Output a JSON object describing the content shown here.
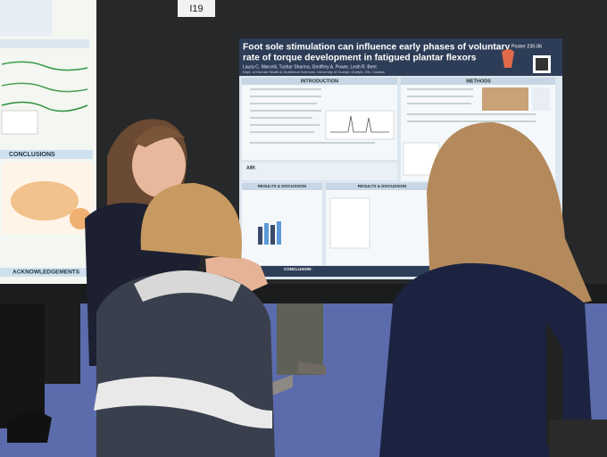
{
  "booth_label": "I19",
  "left_poster": {
    "headings": [
      "CONCLUSIONS",
      "ACKNOWLEDGEMENTS"
    ]
  },
  "poster": {
    "title_lines": [
      "Foot sole stimulation can influence early phases of voluntary",
      "rate of torque development in fatigued plantar flexors"
    ],
    "authors": "Laura C. Marcelli, Tushar Sharma, Geoffrey A. Power, Leah R. Bent",
    "affiliation": "Dept. of Human Health & Nutritional Sciences, University of Guelph, Guelph, ON, Canada",
    "poster_number": "Poster 230.06",
    "sections": {
      "introduction": "INTRODUCTION",
      "methods": "METHODS",
      "aim": "AIM:",
      "results_1": "RESULTS & DISCUSSION",
      "results_2": "RESULTS & DISCUSSION",
      "conclusion": "CONCLUSION:"
    }
  }
}
